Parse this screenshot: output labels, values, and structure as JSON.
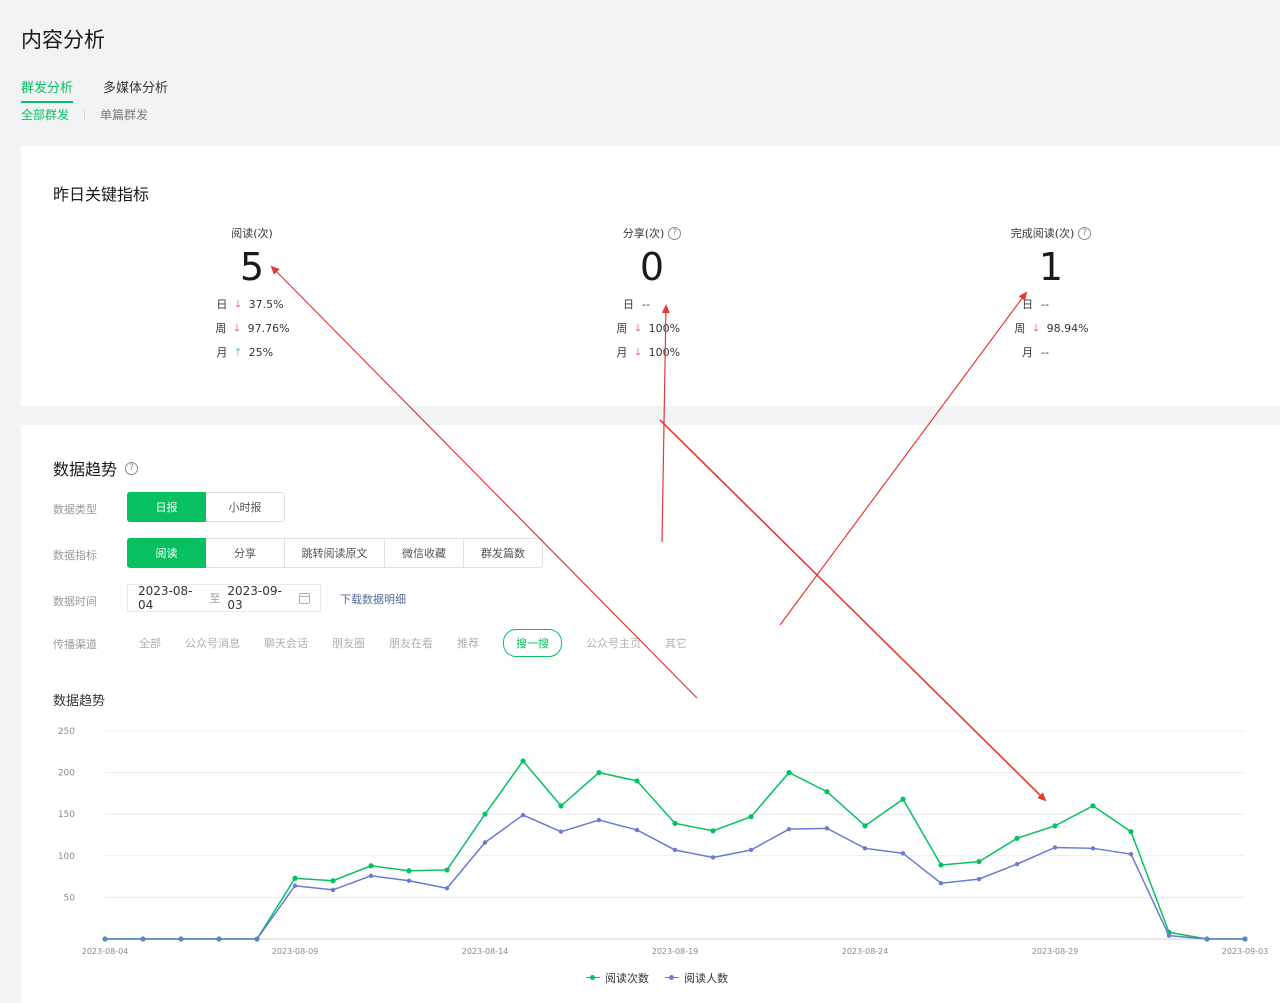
{
  "page": {
    "title": "内容分析"
  },
  "tabs": [
    {
      "label": "群发分析",
      "active": true
    },
    {
      "label": "多媒体分析",
      "active": false
    }
  ],
  "subtabs": [
    {
      "label": "全部群发",
      "active": true
    },
    {
      "label": "单篇群发",
      "active": false
    }
  ],
  "key_metrics": {
    "title": "昨日关键指标",
    "items": [
      {
        "label": "阅读(次)",
        "value": "5",
        "help": false,
        "compare": [
          {
            "key": "日",
            "dir": "down",
            "value": "37.5%"
          },
          {
            "key": "周",
            "dir": "down",
            "value": "97.76%"
          },
          {
            "key": "月",
            "dir": "up",
            "value": "25%"
          }
        ]
      },
      {
        "label": "分享(次)",
        "value": "0",
        "help": true,
        "compare": [
          {
            "key": "日",
            "dir": "none",
            "value": "--"
          },
          {
            "key": "周",
            "dir": "down",
            "value": "100%"
          },
          {
            "key": "月",
            "dir": "down",
            "value": "100%"
          }
        ]
      },
      {
        "label": "完成阅读(次)",
        "value": "1",
        "help": true,
        "compare": [
          {
            "key": "日",
            "dir": "none",
            "value": "--"
          },
          {
            "key": "周",
            "dir": "down",
            "value": "98.94%"
          },
          {
            "key": "月",
            "dir": "none",
            "value": "--"
          }
        ]
      }
    ]
  },
  "trend": {
    "title": "数据趋势",
    "data_type": {
      "label": "数据类型",
      "options": [
        "日报",
        "小时报"
      ],
      "selected": 0
    },
    "data_metric": {
      "label": "数据指标",
      "options": [
        "阅读",
        "分享",
        "跳转阅读原文",
        "微信收藏",
        "群发篇数"
      ],
      "selected": 0
    },
    "data_time": {
      "label": "数据时间",
      "start": "2023-08-04",
      "sep": "至",
      "end": "2023-09-03",
      "download": "下载数据明细"
    },
    "channel": {
      "label": "传播渠道",
      "options": [
        "全部",
        "公众号消息",
        "聊天会话",
        "朋友圈",
        "朋友在看",
        "推荐",
        "搜一搜",
        "公众号主页",
        "其它"
      ],
      "selected": 6
    },
    "chart_title": "数据趋势"
  },
  "chart_data": {
    "type": "line",
    "x": [
      "2023-08-04",
      "2023-08-05",
      "2023-08-06",
      "2023-08-07",
      "2023-08-08",
      "2023-08-09",
      "2023-08-10",
      "2023-08-11",
      "2023-08-12",
      "2023-08-13",
      "2023-08-14",
      "2023-08-15",
      "2023-08-16",
      "2023-08-17",
      "2023-08-18",
      "2023-08-19",
      "2023-08-20",
      "2023-08-21",
      "2023-08-22",
      "2023-08-23",
      "2023-08-24",
      "2023-08-25",
      "2023-08-26",
      "2023-08-27",
      "2023-08-28",
      "2023-08-29",
      "2023-08-30",
      "2023-08-31",
      "2023-09-01",
      "2023-09-02",
      "2023-09-03"
    ],
    "x_ticks": [
      "2023-08-04",
      "2023-08-09",
      "2023-08-14",
      "2023-08-19",
      "2023-08-24",
      "2023-08-29",
      "2023-09-03"
    ],
    "y_ticks": [
      50,
      100,
      150,
      200,
      250
    ],
    "ylim": [
      0,
      250
    ],
    "grid": true,
    "legend_position": "bottom-center",
    "series": [
      {
        "name": "阅读次数",
        "color": "#07c160",
        "values": [
          0,
          0,
          0,
          0,
          0,
          73,
          70,
          88,
          82,
          83,
          150,
          214,
          160,
          200,
          190,
          139,
          130,
          147,
          200,
          177,
          136,
          168,
          89,
          93,
          121,
          136,
          160,
          129,
          8,
          0,
          0
        ]
      },
      {
        "name": "阅读人数",
        "color": "#6a7bd2",
        "values": [
          0,
          0,
          0,
          0,
          0,
          64,
          59,
          76,
          70,
          61,
          116,
          149,
          129,
          143,
          131,
          107,
          98,
          107,
          132,
          133,
          109,
          103,
          67,
          72,
          90,
          110,
          109,
          102,
          4,
          0,
          0
        ]
      }
    ]
  }
}
